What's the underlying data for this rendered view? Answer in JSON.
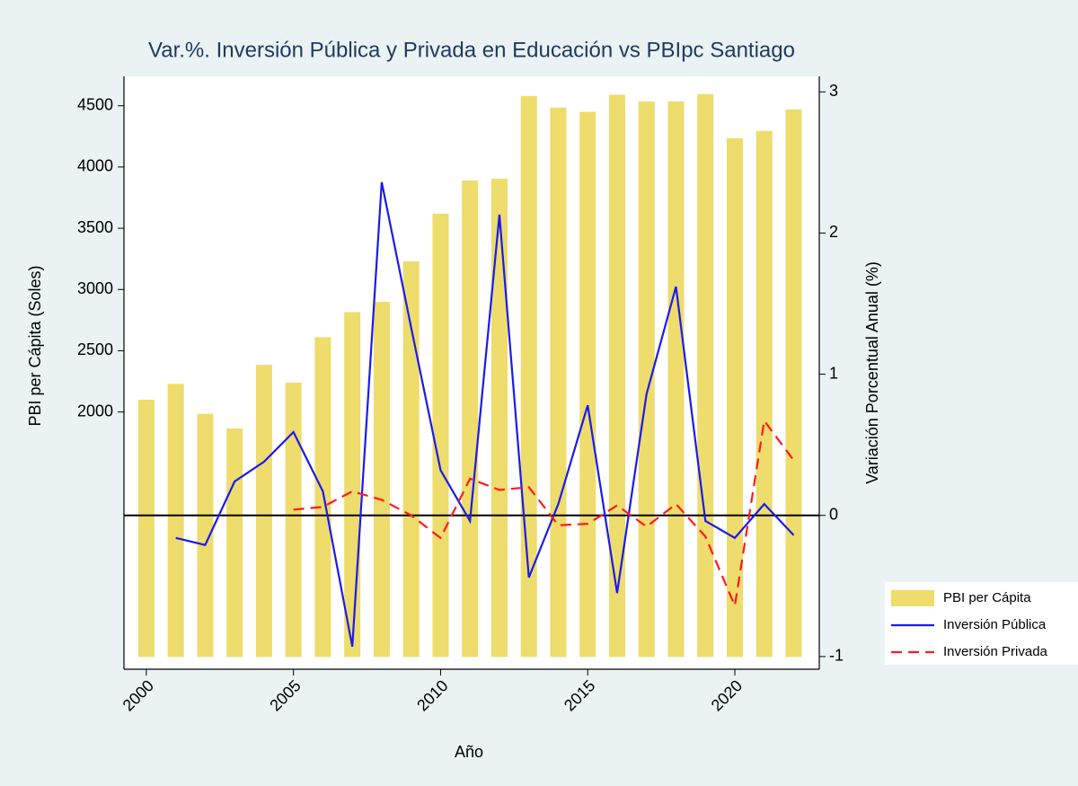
{
  "chart_data": {
    "type": "combo",
    "title": "Var.%. Inversión Pública y Privada en Educación vs PBIpc Santiago",
    "x_label": "Año",
    "y_label": "PBI per Cápita (Soles)",
    "y2_label": "Variación Porcentual Anual (%)",
    "x": [
      2000,
      2001,
      2002,
      2003,
      2004,
      2005,
      2006,
      2007,
      2008,
      2009,
      2010,
      2011,
      2012,
      2013,
      2014,
      2015,
      2016,
      2017,
      2018,
      2019,
      2020,
      2021,
      2022
    ],
    "xlim": [
      1999.24,
      2022.87
    ],
    "xticks": [
      2000,
      2005,
      2010,
      2015,
      2020
    ],
    "ylim": [
      -100,
      4740
    ],
    "yticks": [
      2000,
      2500,
      3000,
      3500,
      4000,
      4500
    ],
    "y2lim": [
      -1.09,
      3.11
    ],
    "y2ticks": [
      -1,
      0,
      1,
      2,
      3
    ],
    "reference_line": {
      "axis": "y2",
      "value": 0,
      "color": "#000000"
    },
    "legend": "right-bottom",
    "series": [
      {
        "name": "PBI per Cápita",
        "type": "bar",
        "axis": "y",
        "color": "#eedc6c",
        "values": [
          2100,
          2230,
          1985,
          1865,
          2385,
          2240,
          2610,
          2815,
          2900,
          3230,
          3620,
          3890,
          3905,
          4580,
          4485,
          4450,
          4590,
          4535,
          4535,
          4595,
          4235,
          4295,
          4470
        ]
      },
      {
        "name": "Inversión Pública",
        "type": "line",
        "axis": "y2",
        "color": "#1a1aee",
        "dash": false,
        "values": [
          null,
          -0.16,
          -0.21,
          0.24,
          0.38,
          0.59,
          0.17,
          -0.93,
          2.36,
          1.33,
          0.32,
          -0.04,
          2.13,
          -0.44,
          0.08,
          0.78,
          -0.55,
          0.86,
          1.62,
          -0.04,
          -0.16,
          0.08,
          -0.14
        ]
      },
      {
        "name": "Inversión Privada",
        "type": "line",
        "axis": "y2",
        "color": "#ff1a1a",
        "dash": true,
        "values": [
          null,
          null,
          null,
          null,
          null,
          0.04,
          0.06,
          0.17,
          0.11,
          0.0,
          -0.16,
          0.26,
          0.18,
          0.2,
          -0.07,
          -0.06,
          0.07,
          -0.08,
          0.08,
          -0.15,
          -0.64,
          0.67,
          0.39
        ]
      }
    ]
  }
}
